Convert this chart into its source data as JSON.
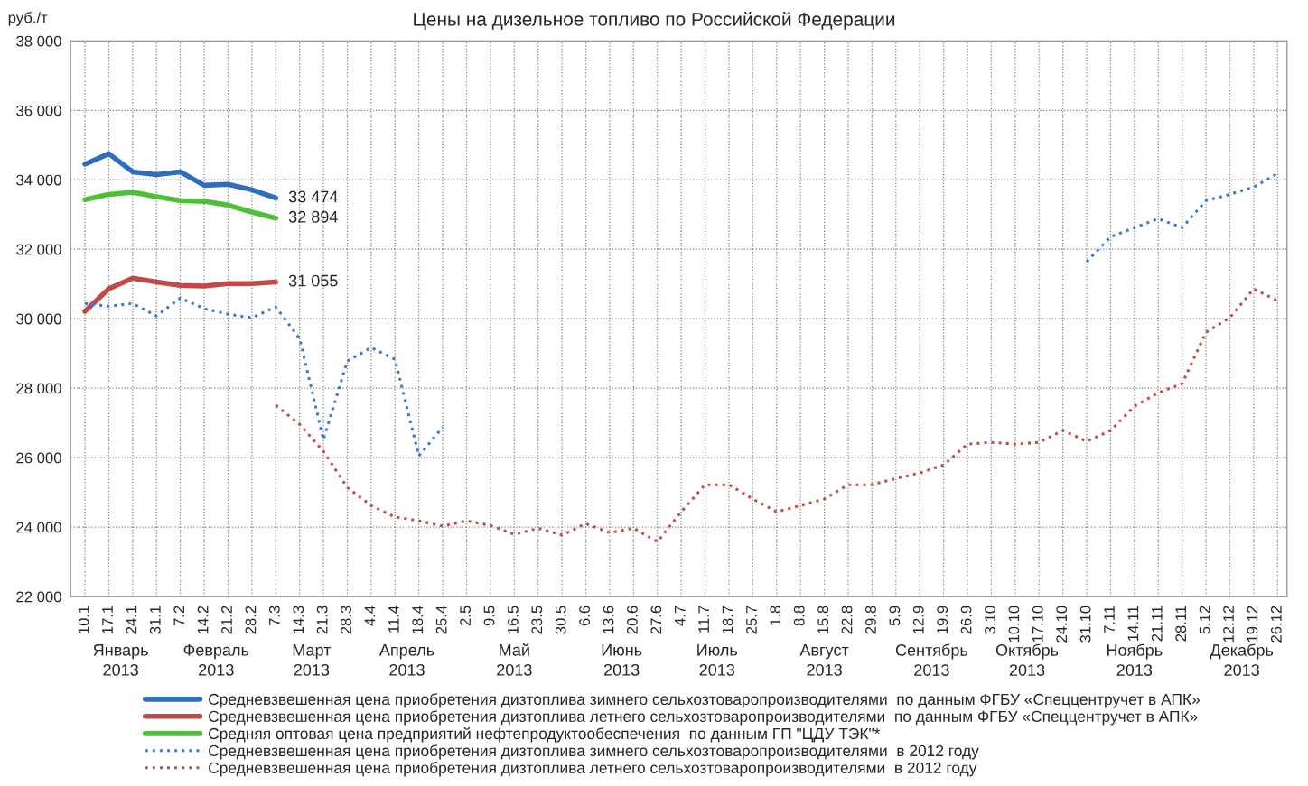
{
  "chart_data": {
    "type": "line",
    "title": "Цены на дизельное топливо по Российской Федерации",
    "ylabel": "руб./т",
    "categories": [
      "10.1",
      "17.1",
      "24.1",
      "31.1",
      "7.2",
      "14.2",
      "21.2",
      "28.2",
      "7.3",
      "14.3",
      "21.3",
      "28.3",
      "4.4",
      "11.4",
      "18.4",
      "25.4",
      "2.5",
      "9.5",
      "16.5",
      "23.5",
      "30.5",
      "6.6",
      "13.6",
      "20.6",
      "27.6",
      "4.7",
      "11.7",
      "18.7",
      "25.7",
      "1.8",
      "8.8",
      "15.8",
      "22.8",
      "29.8",
      "5.9",
      "12.9",
      "19.9",
      "26.9",
      "3.10",
      "10.10",
      "17.10",
      "24.10",
      "31.10",
      "7.11",
      "14.11",
      "21.11",
      "28.11",
      "5.12",
      "12.12",
      "19.12",
      "26.12"
    ],
    "series": [
      {
        "name": "Средневзвешенная цена приобретения дизтоплива зимнего сельхозтоваропроизводителями  по данным ФГБУ «Спеццентручет в АПК»",
        "color": "#2f6ebc",
        "line_style": "solid",
        "values": [
          34450,
          34750,
          34230,
          34150,
          34230,
          33840,
          33870,
          33710,
          33474,
          null,
          null,
          null,
          null,
          null,
          null,
          null,
          null,
          null,
          null,
          null,
          null,
          null,
          null,
          null,
          null,
          null,
          null,
          null,
          null,
          null,
          null,
          null,
          null,
          null,
          null,
          null,
          null,
          null,
          null,
          null,
          null,
          null,
          null,
          null,
          null,
          null,
          null,
          null,
          null,
          null,
          null
        ],
        "value_labels": [
          null,
          null,
          null,
          null,
          null,
          null,
          null,
          null,
          "33 474",
          null,
          null,
          null,
          null,
          null,
          null,
          null,
          null,
          null,
          null,
          null,
          null,
          null,
          null,
          null,
          null,
          null,
          null,
          null,
          null,
          null,
          null,
          null,
          null,
          null,
          null,
          null,
          null,
          null,
          null,
          null,
          null,
          null,
          null,
          null,
          null,
          null,
          null,
          null,
          null,
          null,
          null
        ]
      },
      {
        "name": "Средневзвешенная цена приобретения дизтоплива летнего сельхозтоваропроизводителями  по данным ФГБУ «Спеццентручет в АПК»",
        "color": "#be4b48",
        "line_style": "solid",
        "values": [
          30210,
          30860,
          31170,
          31060,
          30960,
          30940,
          31010,
          31010,
          31055,
          null,
          null,
          null,
          null,
          null,
          null,
          null,
          null,
          null,
          null,
          null,
          null,
          null,
          null,
          null,
          null,
          null,
          null,
          null,
          null,
          null,
          null,
          null,
          null,
          null,
          null,
          null,
          null,
          null,
          null,
          null,
          null,
          null,
          null,
          null,
          null,
          null,
          null,
          null,
          null,
          null,
          null
        ],
        "value_labels": [
          null,
          null,
          null,
          null,
          null,
          null,
          null,
          null,
          "31 055",
          null,
          null,
          null,
          null,
          null,
          null,
          null,
          null,
          null,
          null,
          null,
          null,
          null,
          null,
          null,
          null,
          null,
          null,
          null,
          null,
          null,
          null,
          null,
          null,
          null,
          null,
          null,
          null,
          null,
          null,
          null,
          null,
          null,
          null,
          null,
          null,
          null,
          null,
          null,
          null,
          null,
          null
        ]
      },
      {
        "name": "Средняя оптовая цена предприятий нефтепродуктообеспечения  по данным ГП \"ЦДУ ТЭК\"*",
        "color": "#4fbf3a",
        "line_style": "solid",
        "values": [
          33430,
          33580,
          33640,
          33510,
          33400,
          33380,
          33270,
          33070,
          32894,
          null,
          null,
          null,
          null,
          null,
          null,
          null,
          null,
          null,
          null,
          null,
          null,
          null,
          null,
          null,
          null,
          null,
          null,
          null,
          null,
          null,
          null,
          null,
          null,
          null,
          null,
          null,
          null,
          null,
          null,
          null,
          null,
          null,
          null,
          null,
          null,
          null,
          null,
          null,
          null,
          null,
          null
        ],
        "value_labels": [
          null,
          null,
          null,
          null,
          null,
          null,
          null,
          null,
          "32 894",
          null,
          null,
          null,
          null,
          null,
          null,
          null,
          null,
          null,
          null,
          null,
          null,
          null,
          null,
          null,
          null,
          null,
          null,
          null,
          null,
          null,
          null,
          null,
          null,
          null,
          null,
          null,
          null,
          null,
          null,
          null,
          null,
          null,
          null,
          null,
          null,
          null,
          null,
          null,
          null,
          null,
          null
        ]
      },
      {
        "name": "Средневзвешенная цена приобретения дизтоплива зимнего сельхозтоваропроизводителями  в 2012 году",
        "color": "#3a7bd0",
        "line_style": "dotted",
        "values": [
          30440,
          30360,
          30440,
          30080,
          30600,
          30290,
          30130,
          30030,
          30340,
          29430,
          26520,
          28780,
          29170,
          28830,
          26050,
          26880,
          null,
          null,
          null,
          null,
          null,
          null,
          null,
          null,
          null,
          null,
          null,
          null,
          null,
          null,
          null,
          null,
          null,
          null,
          null,
          null,
          null,
          null,
          null,
          null,
          null,
          null,
          31640,
          32360,
          32620,
          32880,
          32620,
          33400,
          33580,
          33790,
          34180
        ]
      },
      {
        "name": "Средневзвешенная цена приобретения дизтоплива летнего сельхозтоваропроизводителями  в 2012 году",
        "color": "#c0504d",
        "line_style": "dotted",
        "values": [
          null,
          null,
          null,
          null,
          null,
          null,
          null,
          null,
          27510,
          26960,
          26180,
          25140,
          24620,
          24290,
          24180,
          24030,
          24180,
          24050,
          23790,
          23970,
          23770,
          24100,
          23840,
          23970,
          23580,
          24440,
          25220,
          25220,
          24810,
          24440,
          24620,
          24810,
          25220,
          25220,
          25400,
          25560,
          25790,
          26390,
          26440,
          26390,
          26440,
          26780,
          26470,
          26780,
          27480,
          27870,
          28130,
          29610,
          30030,
          30860,
          30520
        ]
      }
    ],
    "ylim": [
      22000,
      38000
    ],
    "yticks": [
      {
        "value": 22000,
        "label": "22 000"
      },
      {
        "value": 24000,
        "label": "24 000"
      },
      {
        "value": 26000,
        "label": "26 000"
      },
      {
        "value": 28000,
        "label": "28 000"
      },
      {
        "value": 30000,
        "label": "30 000"
      },
      {
        "value": 32000,
        "label": "32 000"
      },
      {
        "value": 34000,
        "label": "34 000"
      },
      {
        "value": 36000,
        "label": "36 000"
      },
      {
        "value": 38000,
        "label": "38 000"
      }
    ],
    "annotations": [
      "Январь\n2013",
      "Февраль\n2013",
      "Март\n2013",
      "Апрель\n2013",
      "Май\n2013",
      "Июнь\n2013",
      "Июль\n2013",
      "Август\n2013",
      "Сентябрь\n2013",
      "Октябрь\n2013",
      "Ноябрь\n2013",
      "Декабрь\n2013"
    ],
    "grid": true,
    "legend": "bottom",
    "marker": "none"
  }
}
